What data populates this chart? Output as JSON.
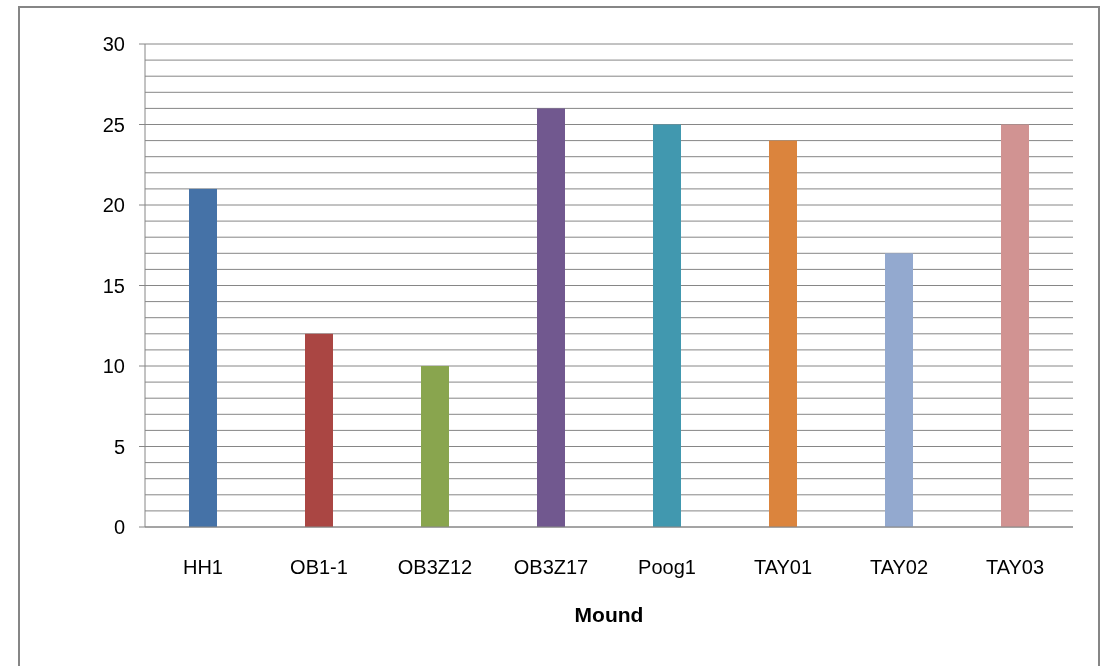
{
  "chart_data": {
    "type": "bar",
    "xlabel": "Mound",
    "categories": [
      "HH1",
      "OB1-1",
      "OB3Z12",
      "OB3Z17",
      "Poog1",
      "TAY01",
      "TAY02",
      "TAY03"
    ],
    "values": [
      21,
      12,
      10,
      26,
      25,
      24,
      17,
      25
    ],
    "colors": [
      "#4572a7",
      "#aa4643",
      "#89a54e",
      "#71588f",
      "#4198af",
      "#db843d",
      "#93a9cf",
      "#d19392"
    ],
    "ylim": [
      0,
      30
    ],
    "yticks": [
      0,
      {
        "value": 1,
        "label": null
      },
      {
        "value": 2,
        "label": null
      },
      {
        "value": 3,
        "label": null
      },
      {
        "value": 4,
        "label": null
      },
      5,
      {
        "value": 6,
        "label": null
      },
      {
        "value": 7,
        "label": null
      },
      {
        "value": 8,
        "label": null
      },
      {
        "value": 9,
        "label": null
      },
      10,
      {
        "value": 11,
        "label": null
      },
      {
        "value": 12,
        "label": null
      },
      {
        "value": 13,
        "label": null
      },
      {
        "value": 14,
        "label": null
      },
      15,
      {
        "value": 16,
        "label": null
      },
      {
        "value": 17,
        "label": null
      },
      {
        "value": 18,
        "label": null
      },
      {
        "value": 19,
        "label": null
      },
      20,
      {
        "value": 21,
        "label": null
      },
      {
        "value": 22,
        "label": null
      },
      {
        "value": 23,
        "label": null
      },
      {
        "value": 24,
        "label": null
      },
      25,
      {
        "value": 26,
        "label": null
      },
      {
        "value": 27,
        "label": null
      },
      {
        "value": 28,
        "label": null
      },
      {
        "value": 29,
        "label": null
      },
      30
    ],
    "grid": true
  }
}
